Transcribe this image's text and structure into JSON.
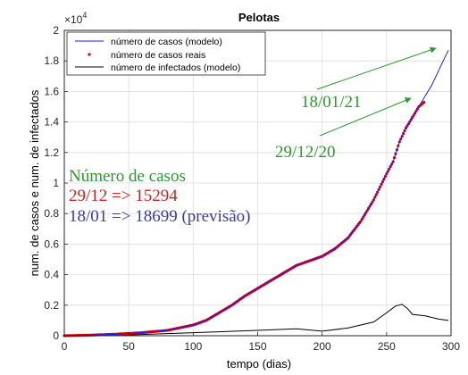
{
  "chart_data": {
    "type": "line",
    "title": "Pelotas",
    "xlabel": "tempo (dias)",
    "ylabel": "num. de casos e num. de infectados",
    "y_exponent_label": "×10",
    "y_exponent_power": "4",
    "xlim": [
      0,
      300
    ],
    "ylim": [
      0,
      20000
    ],
    "x_ticks": [
      0,
      50,
      100,
      150,
      200,
      250,
      300
    ],
    "y_ticks": [
      0,
      2000,
      4000,
      6000,
      8000,
      10000,
      12000,
      14000,
      16000,
      18000,
      20000
    ],
    "y_tick_labels": [
      "0",
      "0.2",
      "0.4",
      "0.6",
      "0.8",
      "1",
      "1.2",
      "1.4",
      "1.6",
      "1.8",
      "2"
    ],
    "grid": true,
    "legend_position": "top-left",
    "series": [
      {
        "name": "número de casos (modelo)",
        "style": "line",
        "color": "#1a1aff",
        "x": [
          0,
          20,
          40,
          60,
          80,
          100,
          110,
          120,
          130,
          140,
          150,
          160,
          170,
          180,
          190,
          200,
          210,
          220,
          230,
          240,
          250,
          255,
          260,
          265,
          270,
          275,
          280,
          285,
          290,
          295,
          298
        ],
        "y": [
          0,
          40,
          100,
          200,
          350,
          700,
          1000,
          1500,
          2000,
          2600,
          3100,
          3600,
          4100,
          4600,
          4900,
          5200,
          5700,
          6400,
          7500,
          8900,
          10600,
          11400,
          12700,
          13600,
          14300,
          15000,
          15700,
          16400,
          17300,
          18200,
          18699
        ]
      },
      {
        "name": "número de casos reais",
        "style": "markers",
        "color": "#e00000",
        "x": [
          0,
          20,
          40,
          60,
          80,
          100,
          110,
          120,
          130,
          140,
          150,
          160,
          170,
          180,
          190,
          200,
          210,
          220,
          230,
          240,
          250,
          255,
          260,
          265,
          270,
          275,
          279
        ],
        "y": [
          0,
          40,
          100,
          200,
          350,
          700,
          1000,
          1500,
          2000,
          2600,
          3100,
          3600,
          4100,
          4600,
          4900,
          5200,
          5700,
          6400,
          7500,
          8900,
          10600,
          11400,
          12700,
          13600,
          14300,
          15000,
          15294
        ]
      },
      {
        "name": "número de infectados (modelo)",
        "style": "line",
        "color": "#000000",
        "x": [
          0,
          50,
          100,
          150,
          180,
          200,
          220,
          240,
          250,
          257,
          262,
          266,
          270,
          280,
          290,
          298
        ],
        "y": [
          0,
          50,
          200,
          350,
          450,
          300,
          500,
          900,
          1500,
          1950,
          2050,
          1800,
          1400,
          1300,
          1100,
          1000
        ]
      }
    ],
    "annotations": [
      {
        "text": "18/01/21",
        "color": "#2a9a2a"
      },
      {
        "text": "29/12/20",
        "color": "#2a9a2a"
      }
    ],
    "text_block": {
      "line1": "Número de casos",
      "line2": "29/12 => 15294",
      "line3": "18/01 => 18699 (previsão)",
      "color1": "#2a9a2a",
      "color2": "#d42020",
      "color3": "#3a3ab0"
    }
  }
}
